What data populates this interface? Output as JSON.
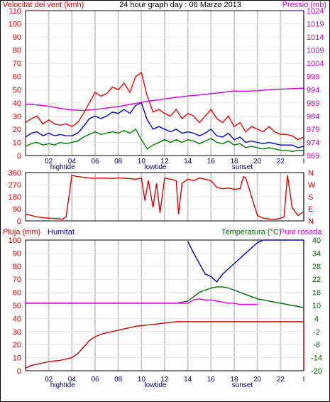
{
  "header": {
    "wind_label": "Velocitat del vent (kmh)",
    "title": "24 hour graph day : 06 Marzo 2013",
    "pressure_label": "Pressió (mb)"
  },
  "colors": {
    "wind": "#dd0000",
    "pressure": "#cc00cc",
    "gust": "#ff0000",
    "avg": "#0000cc",
    "low": "#007700",
    "direction": "#dd0000",
    "rain": "#cc0000",
    "humidity": "#0000bb",
    "temperature": "#006600",
    "dewpoint": "#dd00dd",
    "grid": "#cccccc",
    "frame": "#000000"
  },
  "panel2": {
    "compass_labels": [
      "N",
      "W",
      "S",
      "E",
      "N"
    ]
  },
  "panel3": {
    "rain_label": "Pluja (mm)",
    "humidity_label": "Humitat",
    "temperature_label": "Temperatura (°C)",
    "dewpoint_label": "Punt rosada"
  },
  "x_axis": {
    "ticks": [
      "02",
      "04",
      "06",
      "08",
      "10",
      "12",
      "14",
      "16",
      "18",
      "20",
      "22",
      "I"
    ],
    "events": [
      {
        "label": "hightide",
        "hour": 3.2
      },
      {
        "label": "lowtide",
        "hour": 11.2
      },
      {
        "label": "sunset",
        "hour": 18.7
      }
    ]
  },
  "chart_data": [
    {
      "type": "line",
      "title": "24 hour graph day : 06 Marzo 2013",
      "xlabel": "",
      "ylabel": "Velocitat del vent (kmh)",
      "y2label": "Pressió (mb)",
      "xlim": [
        0,
        24
      ],
      "ylim": [
        0,
        110
      ],
      "y2lim": [
        969,
        1024
      ],
      "y_ticks": [
        0,
        10,
        20,
        30,
        40,
        50,
        60,
        70,
        80,
        90,
        100,
        110
      ],
      "y2_ticks": [
        969,
        974,
        979,
        984,
        989,
        994,
        999,
        1004,
        1009,
        1014,
        1019,
        1024
      ],
      "x": [
        0,
        0.5,
        1,
        1.5,
        2,
        2.5,
        3,
        3.5,
        4,
        4.5,
        5,
        5.5,
        6,
        6.5,
        7,
        7.5,
        8,
        8.5,
        9,
        9.5,
        10,
        10.5,
        11,
        11.5,
        12,
        12.5,
        13,
        13.5,
        14,
        14.5,
        15,
        15.5,
        16,
        16.5,
        17,
        17.5,
        18,
        18.5,
        19,
        19.5,
        20,
        20.5,
        21,
        21.5,
        22,
        22.5,
        23,
        23.5,
        24
      ],
      "series": [
        {
          "name": "",
          "role": "gust",
          "values": [
            25,
            28,
            30,
            24,
            27,
            24,
            23,
            24,
            22,
            25,
            32,
            40,
            48,
            45,
            47,
            52,
            50,
            55,
            48,
            60,
            63,
            45,
            33,
            35,
            32,
            30,
            35,
            28,
            32,
            30,
            25,
            30,
            35,
            28,
            25,
            30,
            22,
            25,
            18,
            22,
            20,
            18,
            22,
            18,
            16,
            16,
            15,
            12,
            14
          ]
        },
        {
          "name": "",
          "role": "avg",
          "values": [
            14,
            17,
            18,
            15,
            17,
            15,
            16,
            15,
            15,
            17,
            22,
            28,
            30,
            28,
            30,
            33,
            32,
            35,
            32,
            38,
            40,
            27,
            20,
            22,
            20,
            18,
            20,
            17,
            18,
            17,
            15,
            17,
            20,
            15,
            14,
            17,
            12,
            14,
            10,
            11,
            10,
            9,
            10,
            9,
            8,
            8,
            8,
            6,
            7
          ]
        },
        {
          "name": "",
          "role": "low",
          "values": [
            7,
            9,
            10,
            8,
            9,
            8,
            10,
            9,
            10,
            11,
            14,
            16,
            18,
            16,
            17,
            18,
            17,
            19,
            17,
            20,
            12,
            5,
            8,
            10,
            12,
            10,
            12,
            10,
            12,
            11,
            9,
            11,
            13,
            10,
            9,
            11,
            8,
            9,
            6,
            7,
            6,
            5,
            6,
            5,
            4,
            4,
            3,
            4,
            4
          ]
        },
        {
          "name": "",
          "role": "pressure",
          "values": [
            988.5,
            988.4,
            988.2,
            988,
            987.7,
            987.3,
            986.9,
            986.6,
            986.3,
            986.2,
            986.1,
            986.3,
            986.5,
            986.7,
            987,
            987.3,
            987.6,
            988,
            988.4,
            988.8,
            989.2,
            989.6,
            989.9,
            990.2,
            990.5,
            990.8,
            991.1,
            991.3,
            991.6,
            991.8,
            992,
            992.2,
            992.5,
            992.7,
            993,
            993.3,
            993.5,
            993.4,
            993.4,
            993.5,
            993.6,
            993.8,
            994,
            994.1,
            994.2,
            994.3,
            994.4,
            994.5,
            994.6
          ]
        }
      ]
    },
    {
      "type": "line",
      "title": "",
      "xlabel": "",
      "ylabel": "",
      "xlim": [
        0,
        24
      ],
      "ylim": [
        0,
        360
      ],
      "y_ticks": [
        0,
        90,
        180,
        270,
        360
      ],
      "x": [
        0,
        0.5,
        1,
        1.5,
        2,
        2.5,
        3,
        3.2,
        3.5,
        4,
        4.5,
        5,
        5.5,
        6,
        6.5,
        7,
        7.5,
        8,
        8.5,
        9,
        9.5,
        10,
        10.3,
        10.6,
        11,
        11.3,
        11.6,
        12,
        12.5,
        13,
        13.2,
        13.5,
        14,
        14.5,
        15,
        15.5,
        16,
        16.5,
        17,
        17.5,
        18,
        18.5,
        18.8,
        19,
        19.5,
        20,
        20.5,
        21,
        21.5,
        22,
        22.3,
        22.6,
        23,
        23.5,
        24
      ],
      "series": [
        {
          "name": "",
          "role": "direction",
          "values": [
            50,
            40,
            30,
            25,
            20,
            18,
            15,
            12,
            30,
            340,
            330,
            325,
            320,
            318,
            320,
            318,
            316,
            320,
            318,
            315,
            310,
            320,
            150,
            300,
            100,
            280,
            60,
            320,
            310,
            300,
            50,
            280,
            310,
            300,
            320,
            310,
            300,
            250,
            240,
            245,
            235,
            240,
            330,
            320,
            180,
            40,
            20,
            15,
            10,
            20,
            30,
            340,
            100,
            40,
            70
          ]
        }
      ]
    },
    {
      "type": "line",
      "title": "",
      "xlabel": "",
      "ylabel": "Pluja (mm)",
      "y2label": "Temperatura (°C)",
      "xlim": [
        0,
        24
      ],
      "ylim": [
        0,
        100
      ],
      "y2lim": [
        -20,
        40
      ],
      "y_ticks": [
        0,
        10,
        20,
        30,
        40,
        50,
        60,
        70,
        80,
        90,
        100
      ],
      "y2_ticks": [
        -20,
        -14,
        -8,
        -2,
        4,
        10,
        16,
        22,
        28,
        34,
        40
      ],
      "x": [
        0,
        0.5,
        1,
        1.5,
        2,
        2.5,
        3,
        3.5,
        4,
        4.5,
        5,
        5.5,
        6,
        6.5,
        7,
        7.5,
        8,
        8.5,
        9,
        9.5,
        10,
        10.5,
        11,
        11.5,
        12,
        12.5,
        13,
        13.5,
        14,
        14.5,
        15,
        15.5,
        16,
        16.5,
        17,
        17.5,
        18,
        18.5,
        19,
        19.5,
        20,
        20.5,
        21,
        21.5,
        22,
        22.5,
        23,
        23.5,
        24
      ],
      "series": [
        {
          "name": "Pluja (mm)",
          "role": "rain",
          "values": [
            2,
            4,
            5,
            6,
            7,
            7.5,
            8,
            9,
            10,
            13,
            18,
            23,
            26,
            28,
            29,
            30,
            31,
            32,
            33,
            34,
            34.5,
            35,
            35.5,
            36,
            36.5,
            37,
            37.5,
            37.5,
            37.5,
            37.5,
            37.5,
            37.5,
            37.5,
            37.5,
            37.5,
            37.5,
            37.5,
            37.5,
            37.5,
            37.5,
            37.5,
            37.5,
            37.5,
            37.5,
            37.5,
            37.5,
            37.5,
            37.5,
            37.5
          ]
        },
        {
          "name": "Humitat",
          "role": "humidity",
          "values": [
            null,
            null,
            null,
            null,
            null,
            null,
            null,
            null,
            null,
            null,
            null,
            null,
            null,
            null,
            null,
            null,
            null,
            null,
            null,
            null,
            null,
            null,
            null,
            null,
            null,
            null,
            null,
            null,
            99,
            90,
            82,
            74,
            72,
            68,
            74,
            78,
            82,
            86,
            90,
            94,
            98,
            100,
            100,
            100,
            100,
            100,
            100,
            100,
            100
          ]
        },
        {
          "name": "Temperatura (°C)",
          "role": "temperature",
          "values": [
            11,
            11,
            11,
            11,
            11,
            11,
            11,
            11,
            11,
            11,
            11,
            11,
            11,
            11,
            11,
            11,
            11,
            11,
            11,
            11,
            11,
            11,
            11,
            11,
            11,
            11,
            11,
            11.5,
            12,
            14,
            16,
            17,
            18,
            18.5,
            18.5,
            18,
            17,
            16,
            15,
            14,
            13,
            12.5,
            12,
            11.5,
            11,
            10.5,
            10,
            9.5,
            9
          ]
        },
        {
          "name": "Punt rosada",
          "role": "dewpoint",
          "values": [
            11,
            11,
            11,
            11,
            11,
            11,
            11,
            11,
            11,
            11,
            11,
            11,
            11,
            11,
            11,
            11,
            11,
            11,
            11,
            11,
            11,
            11,
            11,
            11,
            11,
            11,
            11,
            11,
            11,
            12.5,
            13,
            12.5,
            12.5,
            12,
            11.5,
            11,
            11,
            10.5,
            10.5,
            10.5,
            10.5,
            null,
            null,
            null,
            null,
            null,
            null,
            null,
            null
          ]
        }
      ]
    }
  ]
}
